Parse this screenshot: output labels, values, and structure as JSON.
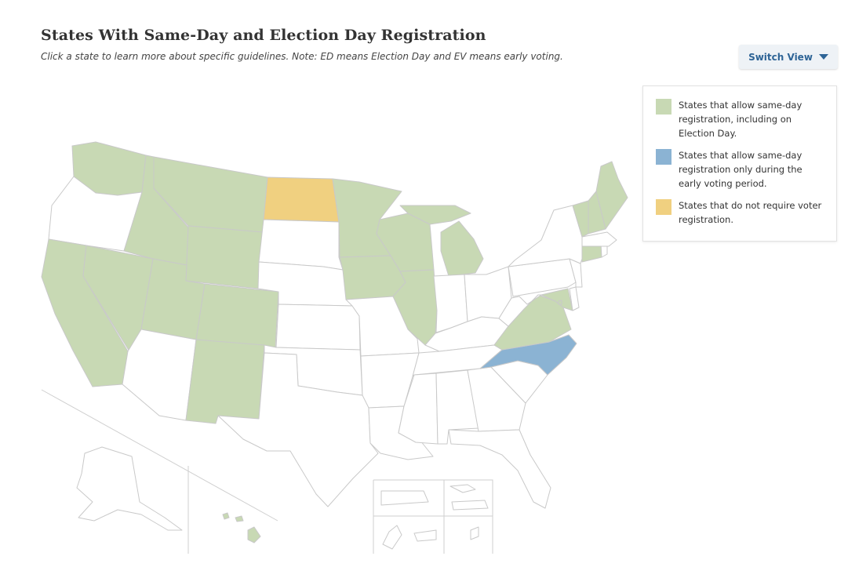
{
  "header": {
    "title": "States With Same-Day and Election Day Registration",
    "subtitle": "Click a state to learn more about specific guidelines. Note: ED means Election Day and EV means early voting."
  },
  "switch_view": {
    "label": "Switch View",
    "icon": "caret-down-icon"
  },
  "legend": {
    "items": [
      {
        "label": "States that allow same-day registration, including on Election Day.",
        "color": "#c8d9b4"
      },
      {
        "label": "States that allow same-day registration only during the early voting period.",
        "color": "#8bb3d3"
      },
      {
        "label": "States that do not require voter registration.",
        "color": "#f0d080"
      }
    ]
  },
  "map": {
    "colors": {
      "election_day": "#c8d9b4",
      "early_voting": "#8bb3d3",
      "no_registration": "#f0d080",
      "none": "#ffffff"
    },
    "states": {
      "WA": "election_day",
      "OR": "none",
      "CA": "election_day",
      "ID": "election_day",
      "NV": "election_day",
      "MT": "election_day",
      "WY": "election_day",
      "UT": "election_day",
      "CO": "election_day",
      "AZ": "none",
      "NM": "election_day",
      "ND": "no_registration",
      "SD": "none",
      "NE": "none",
      "KS": "none",
      "OK": "none",
      "TX": "none",
      "MN": "election_day",
      "IA": "election_day",
      "MO": "none",
      "AR": "none",
      "LA": "none",
      "WI": "election_day",
      "IL": "election_day",
      "MI": "election_day",
      "IN": "none",
      "OH": "none",
      "KY": "none",
      "TN": "none",
      "MS": "none",
      "AL": "none",
      "GA": "none",
      "FL": "none",
      "SC": "none",
      "NC": "early_voting",
      "VA": "election_day",
      "WV": "none",
      "PA": "none",
      "NY": "none",
      "VT": "election_day",
      "NH": "election_day",
      "ME": "election_day",
      "MA": "none",
      "CT": "election_day",
      "RI": "none",
      "NJ": "none",
      "DE": "none",
      "MD": "election_day",
      "DC": "election_day",
      "AK": "none",
      "HI": "election_day",
      "PR": "none",
      "VI": "none",
      "GU": "none",
      "AS": "none",
      "MP": "none"
    }
  }
}
